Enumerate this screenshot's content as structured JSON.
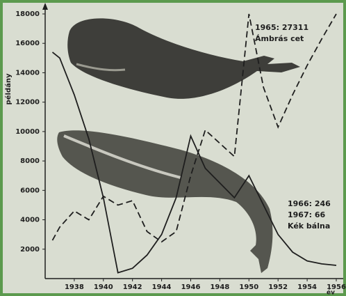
{
  "chart_data": {
    "type": "line",
    "y_label": "példány",
    "x_label": "év",
    "x": [
      1936.5,
      1937,
      1938,
      1939,
      1940,
      1941,
      1942,
      1943,
      1944,
      1945,
      1946,
      1947,
      1948,
      1949,
      1950,
      1951,
      1952,
      1953,
      1954,
      1955,
      1956
    ],
    "series": [
      {
        "name": "Kék bálna",
        "color": "#1e1e1e",
        "dash": "solid",
        "values": [
          15400,
          15000,
          12500,
          9500,
          5500,
          400,
          700,
          1600,
          3000,
          5500,
          9700,
          7500,
          6500,
          5500,
          7000,
          5000,
          3000,
          1800,
          1200,
          1000,
          900
        ]
      },
      {
        "name": "Ámbrás cet",
        "color": "#1e1e1e",
        "dash": "dashed",
        "values": [
          2600,
          3500,
          4600,
          4000,
          5600,
          5000,
          5300,
          3200,
          2500,
          3200,
          7000,
          10100,
          9200,
          8300,
          18000,
          13000,
          10300,
          12500,
          14500,
          16300,
          18000
        ]
      }
    ],
    "annotations": [
      "1965: 27311",
      "Ámbrás cet",
      "1966: 246",
      "1967: 66",
      "Kék bálna"
    ],
    "xlim": [
      1936,
      1956
    ],
    "ylim": [
      0,
      18000
    ],
    "xticks": [
      1938,
      1940,
      1942,
      1944,
      1946,
      1948,
      1950,
      1952,
      1954,
      1956
    ],
    "yticks": [
      2000,
      4000,
      6000,
      8000,
      10000,
      12000,
      14000,
      16000,
      18000
    ]
  }
}
